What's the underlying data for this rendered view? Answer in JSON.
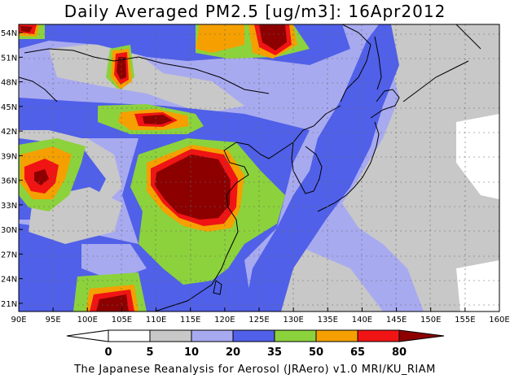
{
  "title": "Daily Averaged PM2.5 [ug/m3]: 16Apr2012",
  "credit": "The Japanese Reanalysis for Aerosol (JRAero) v1.0 MRI/KU_RIAM",
  "map": {
    "lon_range": [
      90,
      160
    ],
    "lat_range": [
      20,
      55
    ],
    "lon_ticks": [
      "90E",
      "95E",
      "100E",
      "105E",
      "110E",
      "115E",
      "120E",
      "125E",
      "130E",
      "135E",
      "140E",
      "145E",
      "150E",
      "155E",
      "160E"
    ],
    "lat_ticks": [
      "21N",
      "24N",
      "27N",
      "30N",
      "33N",
      "36N",
      "39N",
      "42N",
      "45N",
      "48N",
      "51N",
      "54N"
    ]
  },
  "colorbar": {
    "levels": [
      "0",
      "5",
      "10",
      "20",
      "35",
      "50",
      "65",
      "80"
    ],
    "colors": {
      "lt0": "#ffffff",
      "c0_5": "#ffffff",
      "c5_10": "#c8c8c8",
      "c10_20": "#a8aaf0",
      "c20_35": "#5060e8",
      "c35_50": "#8cd23c",
      "c50_65": "#f5a000",
      "c65_80": "#f01414",
      "gt80": "#8c0000"
    }
  }
}
